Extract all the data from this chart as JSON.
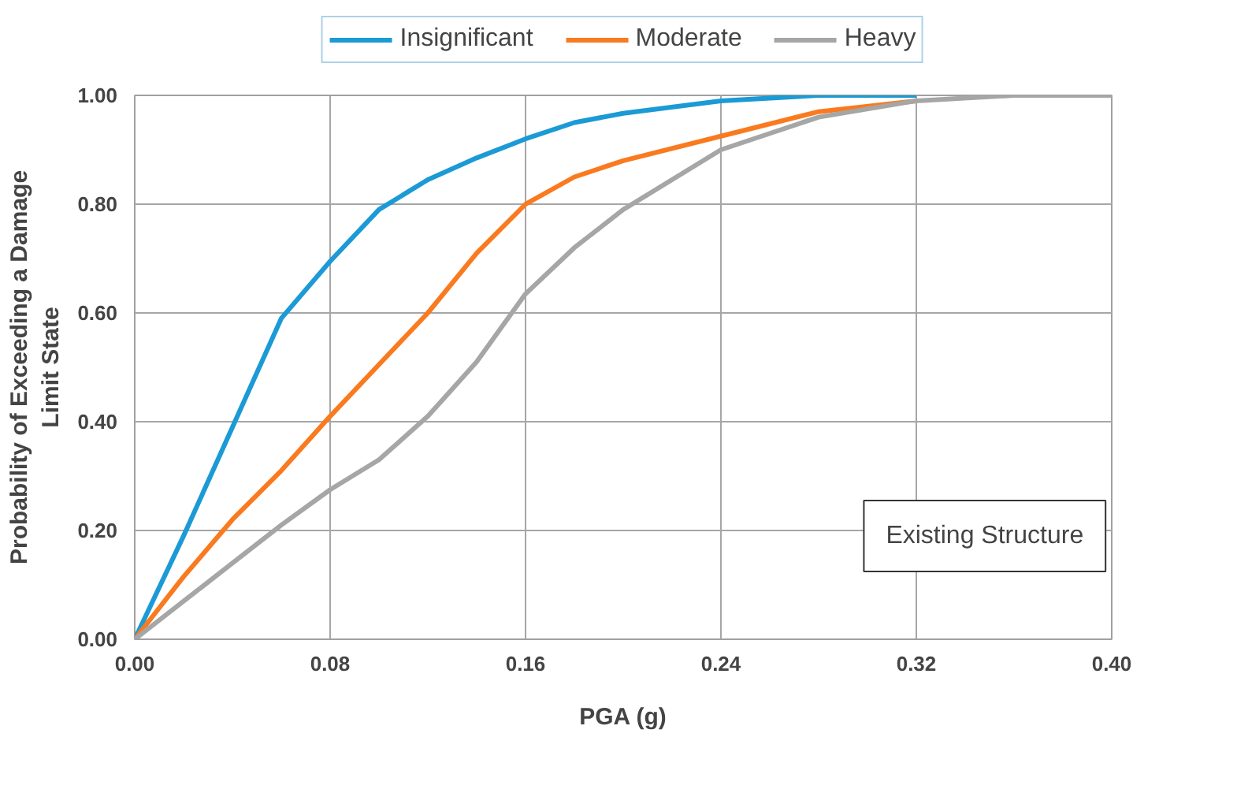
{
  "chart_data": {
    "type": "line",
    "xlabel": "PGA (g)",
    "ylabel": "Probability of Exceeding a Damage\nLimit State",
    "x": [
      0,
      0.02,
      0.04,
      0.06,
      0.08,
      0.1,
      0.12,
      0.14,
      0.16,
      0.18,
      0.2,
      0.24,
      0.28,
      0.32,
      0.36,
      0.4
    ],
    "series": [
      {
        "name": "Insignificant",
        "color": "#1b9ad6",
        "values": [
          0,
          0.19,
          0.39,
          0.59,
          0.695,
          0.79,
          0.845,
          0.885,
          0.92,
          0.95,
          0.967,
          0.99,
          1.0,
          1.0,
          null,
          null
        ]
      },
      {
        "name": "Moderate",
        "color": "#f97a1f",
        "values": [
          0,
          0.115,
          0.22,
          0.31,
          0.41,
          0.505,
          0.6,
          0.71,
          0.8,
          0.85,
          0.88,
          0.925,
          0.97,
          0.99,
          null,
          null
        ]
      },
      {
        "name": "Heavy",
        "color": "#a6a6a6",
        "values": [
          0,
          0.07,
          0.14,
          0.21,
          0.275,
          0.33,
          0.41,
          0.51,
          0.635,
          0.72,
          0.79,
          0.9,
          0.96,
          0.99,
          1.0,
          1.0
        ]
      }
    ],
    "xlim": [
      0,
      0.4
    ],
    "ylim": [
      0,
      1
    ],
    "xticks": [
      {
        "value": 0,
        "label": "0.00"
      },
      {
        "value": 0.08,
        "label": "0.08"
      },
      {
        "value": 0.16,
        "label": "0.16"
      },
      {
        "value": 0.24,
        "label": "0.24"
      },
      {
        "value": 0.32,
        "label": "0.32"
      },
      {
        "value": 0.4,
        "label": "0.40"
      }
    ],
    "yticks": [
      {
        "value": 0,
        "label": "0.00"
      },
      {
        "value": 0.2,
        "label": "0.20"
      },
      {
        "value": 0.4,
        "label": "0.40"
      },
      {
        "value": 0.6,
        "label": "0.60"
      },
      {
        "value": 0.8,
        "label": "0.80"
      },
      {
        "value": 1,
        "label": "1.00"
      }
    ],
    "annotations": [
      "Existing Structure"
    ],
    "grid": true,
    "legend": "top",
    "line_style": "solid"
  }
}
